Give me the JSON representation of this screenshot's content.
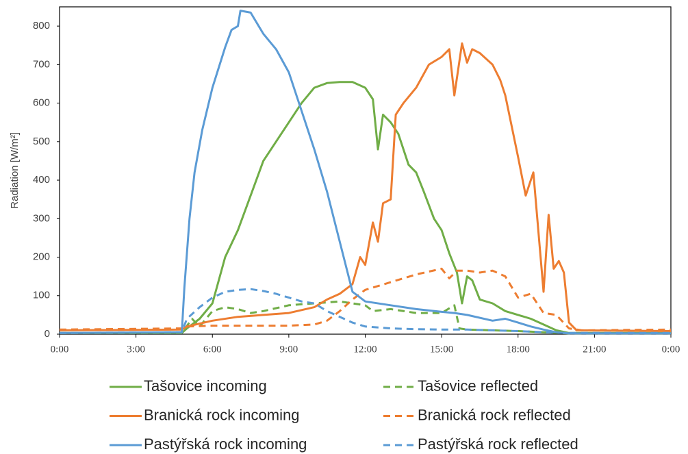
{
  "chart_data": {
    "type": "line",
    "ylabel": "Radiation [W/m²]",
    "xlim": [
      0,
      24
    ],
    "xticks": [
      {
        "value": 0,
        "label": "0:00"
      },
      {
        "value": 3,
        "label": "3:00"
      },
      {
        "value": 6,
        "label": "6:00"
      },
      {
        "value": 9,
        "label": "9:00"
      },
      {
        "value": 12,
        "label": "12:00"
      },
      {
        "value": 15,
        "label": "15:00"
      },
      {
        "value": 18,
        "label": "18:00"
      },
      {
        "value": 21,
        "label": "21:00"
      },
      {
        "value": 24,
        "label": "0:00"
      }
    ],
    "ylim": [
      0,
      850
    ],
    "yticks": [
      0,
      100,
      200,
      300,
      400,
      500,
      600,
      700,
      800
    ],
    "grid": false,
    "series": [
      {
        "name": "Tašovice incoming",
        "color": "#70ad47",
        "style": "solid",
        "x": [
          0,
          4.8,
          5,
          5.5,
          6,
          6.5,
          7,
          7.5,
          8,
          8.5,
          9,
          9.5,
          10,
          10.5,
          11,
          11.5,
          12,
          12.3,
          12.5,
          12.7,
          13,
          13.3,
          13.7,
          14,
          14.3,
          14.7,
          15,
          15.3,
          15.6,
          15.8,
          16,
          16.2,
          16.5,
          17,
          17.5,
          18,
          18.5,
          19,
          19.5,
          20,
          24
        ],
        "values": [
          3,
          3,
          15,
          40,
          80,
          200,
          270,
          360,
          450,
          500,
          550,
          600,
          640,
          652,
          655,
          655,
          640,
          610,
          480,
          570,
          550,
          520,
          440,
          420,
          370,
          300,
          270,
          210,
          160,
          80,
          150,
          140,
          90,
          80,
          60,
          50,
          40,
          25,
          10,
          3,
          3
        ]
      },
      {
        "name": "Tašovice reflected",
        "color": "#70ad47",
        "style": "dashed",
        "x": [
          0,
          4.8,
          5.2,
          5.5,
          6,
          6.5,
          7,
          7.5,
          8,
          9,
          10,
          11,
          12,
          12.3,
          13,
          14,
          15,
          15.5,
          15.7,
          16,
          17,
          18,
          19,
          20,
          24
        ],
        "values": [
          3,
          3,
          40,
          20,
          60,
          70,
          65,
          55,
          60,
          75,
          80,
          85,
          75,
          60,
          65,
          55,
          55,
          75,
          15,
          12,
          10,
          8,
          5,
          2,
          2
        ]
      },
      {
        "name": "Branická rock incoming",
        "color": "#ed7d31",
        "style": "solid",
        "x": [
          0,
          4.8,
          5,
          6,
          7,
          8,
          9,
          10,
          10.5,
          11,
          11.5,
          11.8,
          12,
          12.3,
          12.5,
          12.7,
          13,
          13.2,
          13.5,
          14,
          14.5,
          15,
          15.3,
          15.5,
          15.8,
          16,
          16.2,
          16.5,
          17,
          17.3,
          17.5,
          18,
          18.3,
          18.6,
          19,
          19.2,
          19.4,
          19.6,
          19.8,
          20,
          20.3,
          24
        ],
        "values": [
          10,
          12,
          20,
          35,
          45,
          50,
          55,
          70,
          90,
          105,
          130,
          200,
          180,
          290,
          240,
          340,
          350,
          570,
          600,
          640,
          700,
          720,
          740,
          620,
          755,
          705,
          740,
          730,
          700,
          660,
          620,
          460,
          360,
          420,
          110,
          310,
          170,
          190,
          160,
          30,
          10,
          8
        ]
      },
      {
        "name": "Branická rock reflected",
        "color": "#ed7d31",
        "style": "dashed",
        "x": [
          0,
          4.8,
          5,
          6,
          7,
          8,
          9,
          10,
          10.5,
          11,
          11.5,
          12,
          13,
          14,
          15,
          15.3,
          15.6,
          16,
          16.5,
          17,
          17.5,
          18,
          18.5,
          19,
          19.5,
          20,
          20.5,
          24
        ],
        "values": [
          12,
          15,
          20,
          22,
          22,
          22,
          22,
          25,
          35,
          60,
          90,
          115,
          135,
          155,
          170,
          145,
          165,
          165,
          160,
          165,
          150,
          95,
          105,
          55,
          50,
          15,
          10,
          12
        ]
      },
      {
        "name": "Pastýřská rock incoming",
        "color": "#5b9bd5",
        "style": "solid",
        "x": [
          0,
          4.8,
          4.9,
          5.1,
          5.3,
          5.6,
          6,
          6.5,
          6.75,
          7,
          7.1,
          7.5,
          8,
          8.5,
          9,
          9.5,
          10,
          10.5,
          11,
          11.5,
          12,
          13,
          14,
          15,
          15.5,
          16,
          17,
          17.5,
          18,
          18.5,
          19,
          19.5,
          20,
          24
        ],
        "values": [
          3,
          5,
          120,
          300,
          420,
          530,
          640,
          745,
          790,
          800,
          840,
          835,
          780,
          740,
          680,
          580,
          480,
          370,
          240,
          110,
          85,
          75,
          65,
          58,
          55,
          50,
          35,
          40,
          30,
          20,
          12,
          5,
          2,
          2
        ]
      },
      {
        "name": "Pastýřská rock reflected",
        "color": "#5b9bd5",
        "style": "dashed",
        "x": [
          0,
          4.8,
          5,
          5.5,
          6,
          6.5,
          7,
          7.5,
          8,
          8.5,
          9,
          9.5,
          10,
          10.5,
          11,
          11.5,
          12,
          13,
          14,
          15,
          16,
          17,
          18,
          19,
          20,
          24
        ],
        "values": [
          3,
          5,
          40,
          70,
          95,
          110,
          115,
          117,
          112,
          105,
          95,
          85,
          80,
          60,
          45,
          30,
          20,
          15,
          13,
          12,
          12,
          10,
          8,
          5,
          3,
          3
        ]
      }
    ]
  }
}
